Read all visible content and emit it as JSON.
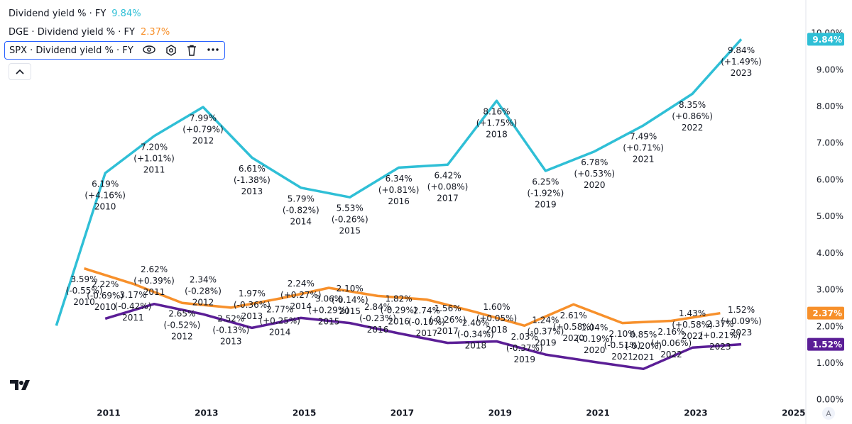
{
  "chart_data": {
    "type": "line",
    "xlim": [
      2008.78,
      2025.25
    ],
    "xticks": [
      2011,
      2013,
      2015,
      2017,
      2019,
      2021,
      2023,
      2025
    ],
    "ylim": [
      -0.15,
      10.91
    ],
    "yticks": [
      {
        "value": 0,
        "label": "0.00%"
      },
      {
        "value": 1,
        "label": "1.00%"
      },
      {
        "value": 2,
        "label": "2.00%"
      },
      {
        "value": 3,
        "label": "3.00%"
      },
      {
        "value": 4,
        "label": "4.00%"
      },
      {
        "value": 5,
        "label": "5.00%"
      },
      {
        "value": 6,
        "label": "6.00%"
      },
      {
        "value": 7,
        "label": "7.00%"
      },
      {
        "value": 8,
        "label": "8.00%"
      },
      {
        "value": 9,
        "label": "9.00%"
      },
      {
        "value": 10,
        "label": "10.00%"
      }
    ],
    "series": [
      {
        "name": "Dividend yield % · FY",
        "color": "#2fbfd6",
        "x": [
          2009,
          2010,
          2011,
          2012,
          2013,
          2014,
          2015,
          2016,
          2017,
          2018,
          2019,
          2020,
          2021,
          2022,
          2023
        ],
        "values": [
          2.03,
          6.19,
          7.2,
          7.99,
          6.61,
          5.79,
          5.53,
          6.34,
          6.42,
          8.16,
          6.25,
          6.78,
          7.49,
          8.35,
          9.84
        ],
        "value_labels": [
          null,
          "6.19%",
          "7.20%",
          "7.99%",
          "6.61%",
          "5.79%",
          "5.53%",
          "6.34%",
          "6.42%",
          "8.16%",
          "6.25%",
          "6.78%",
          "7.49%",
          "8.35%",
          "9.84%"
        ],
        "change_labels": [
          null,
          "(+4.16%)",
          "(+1.01%)",
          "(+0.79%)",
          "(-1.38%)",
          "(-0.82%)",
          "(-0.26%)",
          "(+0.81%)",
          "(+0.08%)",
          "(+1.75%)",
          "(-1.92%)",
          "(+0.53%)",
          "(+0.71%)",
          "(+0.86%)",
          "(+1.49%)"
        ]
      },
      {
        "name": "DGE · Dividend yield % · FY",
        "color": "#f7902b",
        "x": [
          2010,
          2011,
          2012,
          2013,
          2014,
          2015,
          2016,
          2017,
          2018,
          2019,
          2020,
          2021,
          2022,
          2023
        ],
        "values": [
          3.59,
          3.17,
          2.65,
          2.52,
          2.77,
          3.06,
          2.84,
          2.74,
          2.4,
          2.03,
          2.61,
          2.1,
          2.16,
          2.37
        ],
        "value_labels": [
          "3.59%",
          "3.17%",
          "2.65%",
          "2.52%",
          "2.77%",
          "3.06%",
          "2.84%",
          "2.74%",
          "2.40%",
          "2.03%",
          "2.61%",
          "2.10%",
          "2.16%",
          "2.37%"
        ],
        "change_labels": [
          "(-0.55%)",
          "(-0.42%)",
          "(-0.52%)",
          "(-0.13%)",
          "(+0.25%)",
          "(+0.29%)",
          "(-0.23%)",
          "(-0.10%)",
          "(-0.34%)",
          "(-0.37%)",
          "(+0.58%)",
          "(-0.51%)",
          "(+0.06%)",
          "(+0.21%)"
        ]
      },
      {
        "name": "SPX · Dividend yield % · FY",
        "color": "#5b1e96",
        "x": [
          2010,
          2011,
          2012,
          2013,
          2014,
          2015,
          2016,
          2017,
          2018,
          2019,
          2020,
          2021,
          2022,
          2023
        ],
        "values": [
          2.22,
          2.62,
          2.34,
          1.97,
          2.24,
          2.1,
          1.82,
          1.56,
          1.6,
          1.24,
          1.04,
          0.85,
          1.43,
          1.52
        ],
        "value_labels": [
          "2.22%",
          "2.62%",
          "2.34%",
          "1.97%",
          "2.24%",
          "2.10%",
          "1.82%",
          "1.56%",
          "1.60%",
          "1.24%",
          "1.04%",
          "0.85%",
          "1.43%",
          "1.52%"
        ],
        "change_labels": [
          "(-0.69%)",
          "(+0.39%)",
          "(-0.28%)",
          "(-0.36%)",
          "(+0.27%)",
          "(-0.14%)",
          "(-0.29%)",
          "(-0.26%)",
          "(+0.05%)",
          "(-0.37%)",
          "(-0.19%)",
          "(-0.20%)",
          "(+0.58%)",
          "(+0.09%)"
        ]
      }
    ]
  }
}
